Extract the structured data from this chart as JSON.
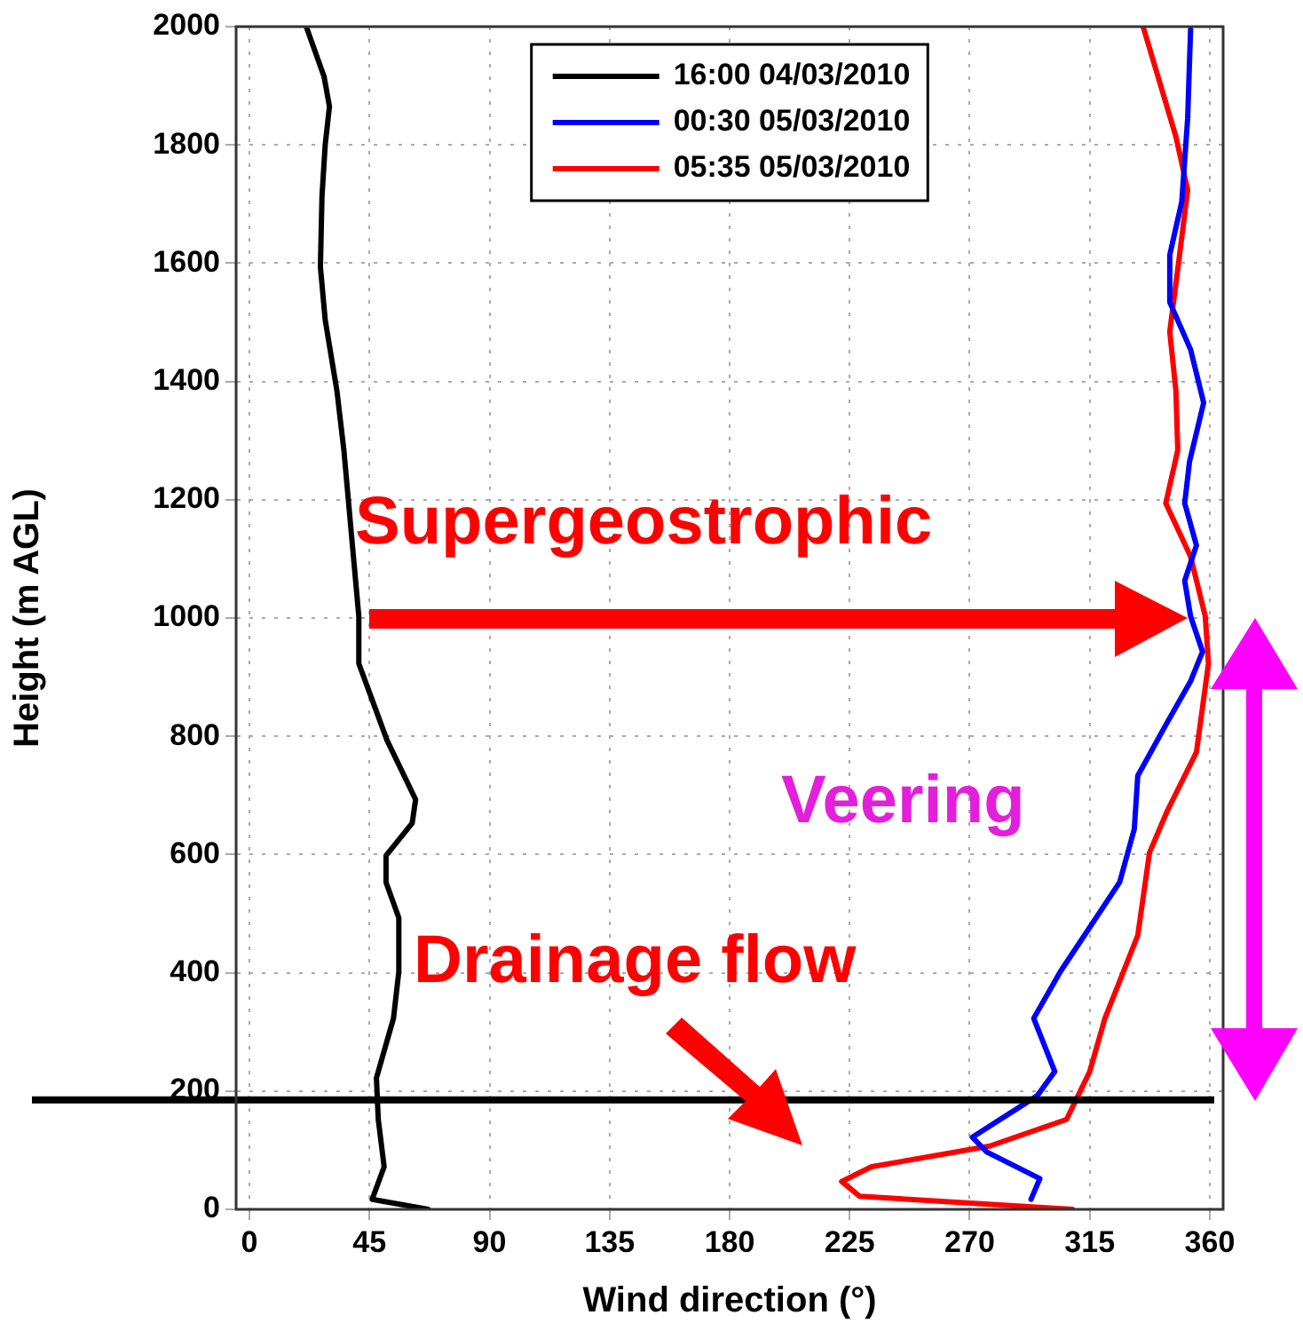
{
  "chart_data": {
    "type": "line",
    "xlabel": "Wind direction (°)",
    "ylabel": "Height (m AGL)",
    "xlim": [
      -5,
      365
    ],
    "xticks": [
      0,
      45,
      90,
      135,
      180,
      225,
      270,
      315,
      360
    ],
    "ylim": [
      0,
      2000
    ],
    "yticks": [
      0,
      200,
      400,
      600,
      800,
      1000,
      1200,
      1400,
      1600,
      1800,
      2000
    ],
    "grid": true,
    "legend": "top",
    "line_style": "solid",
    "marker": "none",
    "series": [
      {
        "name": "16:00 04/03/2010",
        "color": "#000000",
        "x": [
          67,
          46,
          50.5,
          48.3,
          47.6,
          54,
          56,
          56,
          51.2,
          51.2,
          61,
          62.3,
          51.6,
          41,
          41,
          38.8,
          35.4,
          32.8,
          28.4,
          26.6,
          27.2,
          28.4,
          30,
          28,
          21.3
        ],
        "values": [
          0,
          17,
          72,
          152,
          222,
          323,
          402,
          493,
          553,
          598,
          653,
          693,
          793,
          923,
          1003,
          1113,
          1284,
          1384,
          1504,
          1594,
          1714,
          1800,
          1865,
          1915,
          2000
        ]
      },
      {
        "name": "00:30 05/03/2010",
        "color": "#0000ff",
        "x": [
          293,
          296.3,
          276.4,
          271,
          295.3,
          301.9,
          294,
          304,
          326.2,
          331.7,
          333,
          344,
          352.8,
          357.3,
          352.8,
          350.6,
          355,
          350.6,
          352.4,
          357.7,
          352.8,
          345,
          345,
          349.5,
          351.7,
          352.8
        ],
        "values": [
          17,
          52,
          97,
          122,
          192,
          233,
          323,
          402,
          553,
          643,
          733,
          823,
          893,
          943,
          1003,
          1063,
          1123,
          1194,
          1264,
          1364,
          1454,
          1534,
          1614,
          1704,
          1844,
          1995
        ]
      },
      {
        "name": "05:35 05/03/2010",
        "color": "#ff0000",
        "x": [
          308.5,
          228.8,
          222,
          233.2,
          277.5,
          306.3,
          315,
          320.7,
          333,
          337.4,
          344,
          355,
          359.5,
          358.3,
          352.8,
          343.5,
          348,
          347.3,
          345,
          348.4,
          351.7,
          347.3,
          335
        ],
        "values": [
          0,
          22,
          47,
          72,
          107,
          152,
          233,
          323,
          463,
          603,
          673,
          773,
          923,
          1003,
          1104,
          1194,
          1284,
          1384,
          1484,
          1604,
          1724,
          1814,
          2000
        ]
      }
    ],
    "ref_lines": [
      {
        "axis": "y",
        "value": 185,
        "color": "#000000"
      }
    ],
    "annotations": [
      "Supergeostrophic",
      "Veering",
      "Drainage flow"
    ]
  }
}
